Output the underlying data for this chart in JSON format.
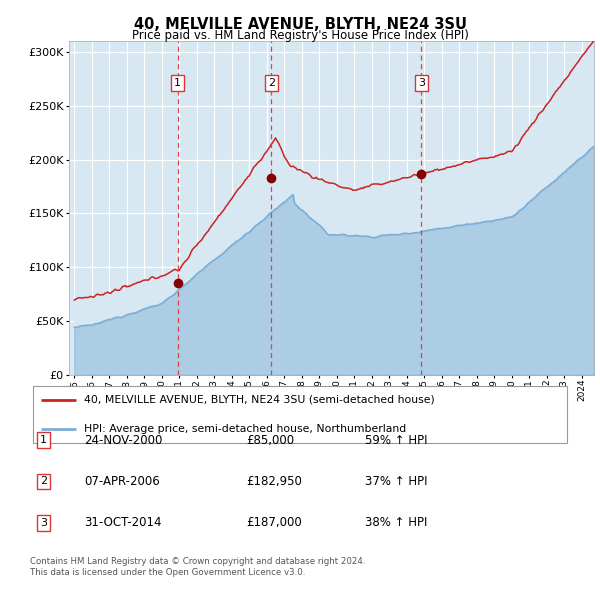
{
  "title": "40, MELVILLE AVENUE, BLYTH, NE24 3SU",
  "subtitle": "Price paid vs. HM Land Registry's House Price Index (HPI)",
  "legend_line1": "40, MELVILLE AVENUE, BLYTH, NE24 3SU (semi-detached house)",
  "legend_line2": "HPI: Average price, semi-detached house, Northumberland",
  "footnote1": "Contains HM Land Registry data © Crown copyright and database right 2024.",
  "footnote2": "This data is licensed under the Open Government Licence v3.0.",
  "transactions": [
    {
      "label": "1",
      "date": "24-NOV-2000",
      "price": 85000,
      "pct": "59%",
      "dir": "↑",
      "x_year": 2000.9
    },
    {
      "label": "2",
      "date": "07-APR-2006",
      "price": 182950,
      "pct": "37%",
      "dir": "↑",
      "x_year": 2006.27
    },
    {
      "label": "3",
      "date": "31-OCT-2014",
      "price": 187000,
      "pct": "38%",
      "dir": "↑",
      "x_year": 2014.83
    }
  ],
  "hpi_color": "#7aaed6",
  "price_color": "#cc2222",
  "marker_color": "#880000",
  "plot_bg": "#d8e8f3",
  "grid_color": "#ffffff",
  "dashed_color": "#dd3333",
  "ylim": [
    0,
    310000
  ],
  "yticks": [
    0,
    50000,
    100000,
    150000,
    200000,
    250000,
    300000
  ],
  "xlim_start": 1994.7,
  "xlim_end": 2024.7
}
